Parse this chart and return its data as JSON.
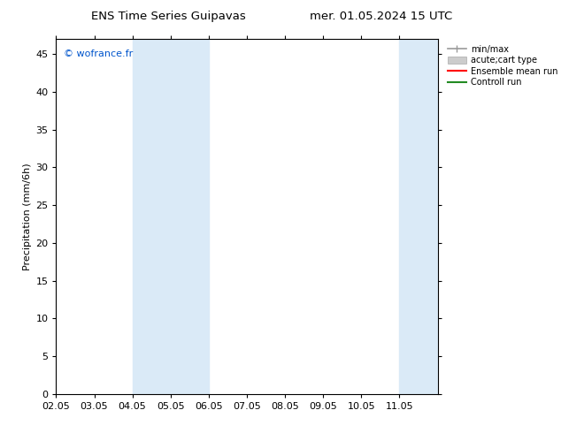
{
  "title_left": "ENS Time Series Guipavas",
  "title_right": "mer. 01.05.2024 15 UTC",
  "ylabel": "Precipitation (mm/6h)",
  "watermark": "© wofrance.fr",
  "watermark_color": "#0055cc",
  "ylim": [
    0,
    47
  ],
  "yticks": [
    0,
    5,
    10,
    15,
    20,
    25,
    30,
    35,
    40,
    45
  ],
  "xtick_labels": [
    "02.05",
    "03.05",
    "04.05",
    "05.05",
    "06.05",
    "07.05",
    "08.05",
    "09.05",
    "10.05",
    "11.05"
  ],
  "xtick_positions": [
    2,
    3,
    4,
    5,
    6,
    7,
    8,
    9,
    10,
    11
  ],
  "xlim": [
    2,
    12
  ],
  "shaded_bands": [
    {
      "xmin": 4.0,
      "xmax": 5.0,
      "color": "#daeaf7"
    },
    {
      "xmin": 5.0,
      "xmax": 6.0,
      "color": "#daeaf7"
    },
    {
      "xmin": 11.0,
      "xmax": 11.5,
      "color": "#daeaf7"
    },
    {
      "xmin": 11.5,
      "xmax": 12.0,
      "color": "#daeaf7"
    }
  ],
  "background_color": "#ffffff",
  "font_size": 8,
  "title_fontsize": 9.5
}
